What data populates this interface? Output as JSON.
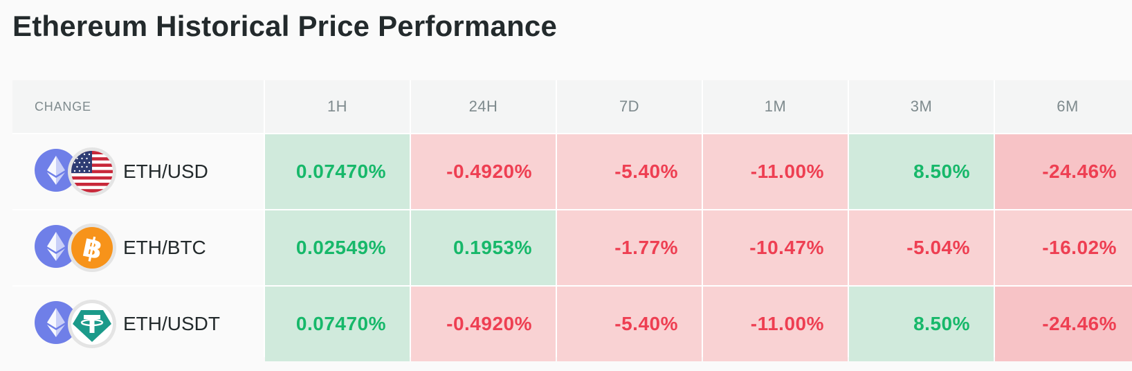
{
  "page": {
    "title": "Ethereum Historical Price Performance"
  },
  "colors": {
    "up_text": "#17b86a",
    "up_bg": "#d0eadc",
    "down_text": "#ee3f52",
    "down_bg": "#f9d2d3",
    "down_bg_strong": "#f7c3c6"
  },
  "table": {
    "headers": [
      "CHANGE",
      "1H",
      "24H",
      "7D",
      "1M",
      "3M",
      "6M"
    ],
    "rows": [
      {
        "pair": "ETH/USD",
        "base_icon": "ethereum-icon",
        "quote_icon": "us-flag-icon",
        "values": [
          "0.07470%",
          "-0.4920%",
          "-5.40%",
          "-11.00%",
          "8.50%",
          "-24.46%"
        ]
      },
      {
        "pair": "ETH/BTC",
        "base_icon": "ethereum-icon",
        "quote_icon": "bitcoin-icon",
        "values": [
          "0.02549%",
          "0.1953%",
          "-1.77%",
          "-10.47%",
          "-5.04%",
          "-16.02%"
        ]
      },
      {
        "pair": "ETH/USDT",
        "base_icon": "ethereum-icon",
        "quote_icon": "tether-icon",
        "values": [
          "0.07470%",
          "-0.4920%",
          "-5.40%",
          "-11.00%",
          "8.50%",
          "-24.46%"
        ]
      }
    ]
  }
}
